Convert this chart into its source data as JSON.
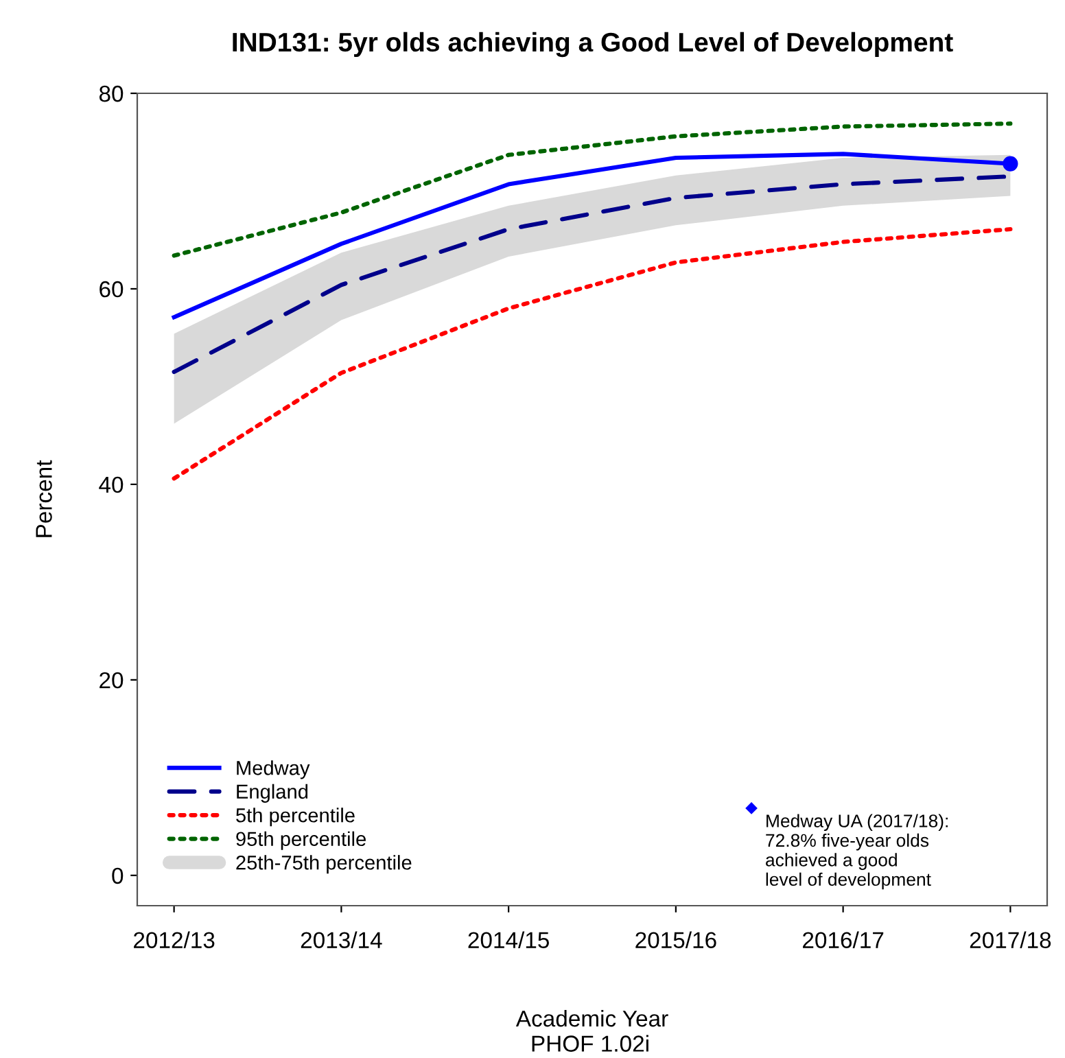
{
  "chart_data": {
    "type": "line",
    "title": "IND131: 5yr olds achieving a Good Level of Development",
    "xlabel": "Academic Year",
    "ylabel": "Percent",
    "categories": [
      "2012/13",
      "2013/14",
      "2014/15",
      "2015/16",
      "2016/17",
      "2017/18"
    ],
    "series": [
      {
        "name": "Medway",
        "color": "#0000ff",
        "line_style": "solid",
        "values": [
          57.1,
          64.6,
          70.7,
          73.4,
          73.8,
          72.8
        ]
      },
      {
        "name": "England",
        "color": "#00008b",
        "line_style": "dashed",
        "values": [
          51.5,
          60.4,
          66.1,
          69.3,
          70.7,
          71.5
        ]
      },
      {
        "name": "5th percentile",
        "color": "#ff0000",
        "line_style": "dotted",
        "values": [
          40.6,
          51.4,
          58.0,
          62.7,
          64.8,
          66.1
        ]
      },
      {
        "name": "95th percentile",
        "color": "#006400",
        "line_style": "dotted",
        "values": [
          63.4,
          67.8,
          73.7,
          75.6,
          76.6,
          76.9
        ]
      },
      {
        "name": "25th-75th percentile",
        "type": "area",
        "color": "#d9d9d9",
        "values": [
          null,
          null,
          null,
          null,
          null,
          null
        ],
        "lower": [
          46.2,
          56.8,
          63.3,
          66.5,
          68.5,
          69.5
        ],
        "upper": [
          55.4,
          63.7,
          68.5,
          71.6,
          73.4,
          73.7
        ]
      }
    ],
    "ylim": [
      -3.1,
      80
    ],
    "yticks": [
      0,
      20,
      40,
      60,
      80
    ],
    "grid": false,
    "legend": "bottom left",
    "annotations": [
      "Medway UA (2017/18):\n72.8% five-year olds\nachieved a good\nlevel of development",
      "PHOF 1.02i"
    ]
  }
}
